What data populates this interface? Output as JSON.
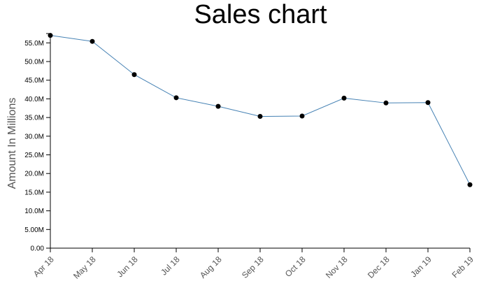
{
  "chart_data": {
    "type": "line",
    "title": "Sales chart",
    "xlabel": "",
    "ylabel": "Amount In Millions",
    "categories": [
      "Apr 18",
      "May 18",
      "Jun 18",
      "Jul 18",
      "Aug 18",
      "Sep 18",
      "Oct 18",
      "Nov 18",
      "Dec 18",
      "Jan 19",
      "Feb 19"
    ],
    "values": [
      57.0,
      55.4,
      46.5,
      40.3,
      38.0,
      35.3,
      35.4,
      40.2,
      38.9,
      39.0,
      17.0
    ],
    "ylim": [
      0,
      57.5
    ],
    "yticks": [
      "0.00",
      "5.00M",
      "10.0M",
      "15.0M",
      "20.0M",
      "25.0M",
      "30.0M",
      "35.0M",
      "40.0M",
      "45.0M",
      "50.0M",
      "55.0M"
    ],
    "ytick_values": [
      0,
      5,
      10,
      15,
      20,
      25,
      30,
      35,
      40,
      45,
      50,
      55
    ],
    "grid": false,
    "line_color": "#4682b4",
    "point_color": "#000000"
  }
}
